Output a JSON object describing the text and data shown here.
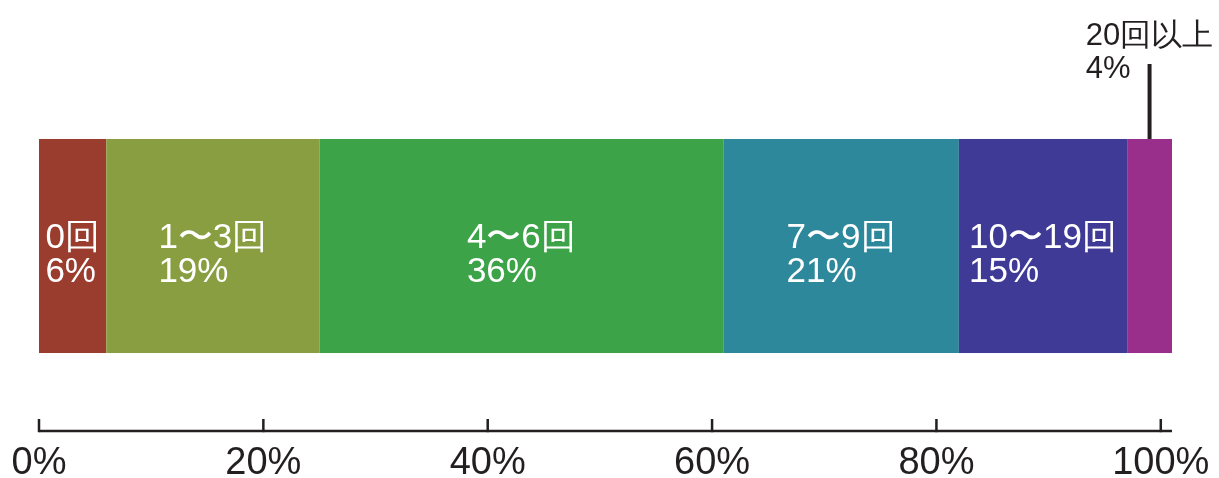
{
  "chart_data": {
    "type": "bar",
    "orientation": "horizontal",
    "stacked": true,
    "categories": [
      null
    ],
    "series": [
      {
        "name": "0回",
        "color": "#9a3c2e",
        "values": [
          6
        ],
        "value_labels": [
          "6%"
        ]
      },
      {
        "name": "1〜3回",
        "color": "#899e40",
        "values": [
          19
        ],
        "value_labels": [
          "19%"
        ]
      },
      {
        "name": "4〜6回",
        "color": "#3da348",
        "values": [
          36
        ],
        "value_labels": [
          "36%"
        ]
      },
      {
        "name": "7〜9回",
        "color": "#2e889b",
        "values": [
          21
        ],
        "value_labels": [
          "21%"
        ]
      },
      {
        "name": "10〜19回",
        "color": "#3f3a95",
        "values": [
          15
        ],
        "value_labels": [
          "15%"
        ]
      },
      {
        "name": "20回以上",
        "color": "#9a2f8b",
        "values": [
          4
        ],
        "value_labels": [
          "4%"
        ]
      }
    ],
    "xlim": [
      0,
      101
    ],
    "xticks": [
      {
        "value": 0,
        "label": "0%"
      },
      {
        "value": 20,
        "label": "20%"
      },
      {
        "value": 40,
        "label": "40%"
      },
      {
        "value": 60,
        "label": "60%"
      },
      {
        "value": 80,
        "label": "80%"
      },
      {
        "value": 100,
        "label": "100%"
      }
    ]
  }
}
